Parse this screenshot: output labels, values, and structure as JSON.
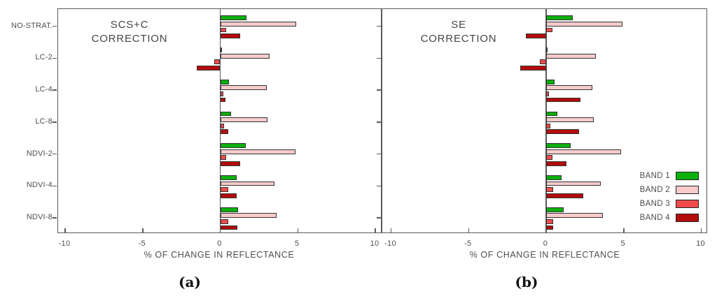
{
  "figure": {
    "captions": {
      "a": "(a)",
      "b": "(b)"
    }
  },
  "colors": {
    "band1": "#0CB00C",
    "band2": "#F8CBCB",
    "band3": "#F14B4B",
    "band4": "#B30C0C",
    "axis": "#5a5a5a",
    "text": "#4d4d4d"
  },
  "legend": {
    "entries": [
      {
        "label": "BAND 1",
        "color": "#0CB00C"
      },
      {
        "label": "BAND 2",
        "color": "#F8CBCB"
      },
      {
        "label": "BAND 3",
        "color": "#F14B4B"
      },
      {
        "label": "BAND 4",
        "color": "#B30C0C"
      }
    ]
  },
  "chart_data": [
    {
      "type": "bar",
      "orientation": "horizontal",
      "title": "SCS+C CORRECTION",
      "title_lines": [
        "SCS+C",
        "CORRECTION"
      ],
      "xlabel": "% OF CHANGE IN REFLECTANCE",
      "xlim": [
        -10.5,
        10.5
      ],
      "xticks": [
        -10,
        -5,
        0,
        5,
        10
      ],
      "grid": false,
      "categories": [
        "NO-STRAT.",
        "LC-2",
        "LC-4",
        "LC-8",
        "NDVI-2",
        "NDVI-4",
        "NDVI-8"
      ],
      "series": [
        {
          "name": "BAND 1",
          "color": "#0CB00C",
          "values": [
            1.7,
            0.05,
            0.55,
            0.7,
            1.65,
            1.05,
            1.15
          ]
        },
        {
          "name": "BAND 2",
          "color": "#F8CBCB",
          "values": [
            4.9,
            3.2,
            3.0,
            3.05,
            4.85,
            3.5,
            3.65
          ]
        },
        {
          "name": "BAND 3",
          "color": "#F14B4B",
          "values": [
            0.4,
            -0.4,
            0.2,
            0.25,
            0.4,
            0.5,
            0.5
          ]
        },
        {
          "name": "BAND 4",
          "color": "#B30C0C",
          "values": [
            1.3,
            -1.5,
            0.35,
            0.5,
            1.3,
            1.05,
            1.1
          ]
        }
      ]
    },
    {
      "type": "bar",
      "orientation": "horizontal",
      "title": "SE CORRECTION",
      "title_lines": [
        "SE",
        "CORRECTION"
      ],
      "xlabel": "% OF CHANGE IN REFLECTANCE",
      "xlim": [
        -10.5,
        10.5
      ],
      "xticks": [
        -10,
        -5,
        0,
        5,
        10
      ],
      "grid": false,
      "legend_position": "inside-right",
      "categories": [
        "NO-STRAT.",
        "LC-2",
        "LC-4",
        "LC-8",
        "NDVI-2",
        "NDVI-4",
        "NDVI-8"
      ],
      "series": [
        {
          "name": "BAND 1",
          "color": "#0CB00C",
          "values": [
            1.7,
            0.05,
            0.55,
            0.7,
            1.6,
            1.0,
            1.15
          ]
        },
        {
          "name": "BAND 2",
          "color": "#F8CBCB",
          "values": [
            4.9,
            3.2,
            3.0,
            3.05,
            4.85,
            3.5,
            3.65
          ]
        },
        {
          "name": "BAND 3",
          "color": "#F14B4B",
          "values": [
            0.4,
            -0.4,
            0.2,
            0.25,
            0.4,
            0.45,
            0.45
          ]
        },
        {
          "name": "BAND 4",
          "color": "#B30C0C",
          "values": [
            -1.3,
            -1.65,
            2.2,
            2.1,
            1.3,
            2.4,
            0.45
          ]
        }
      ]
    }
  ]
}
